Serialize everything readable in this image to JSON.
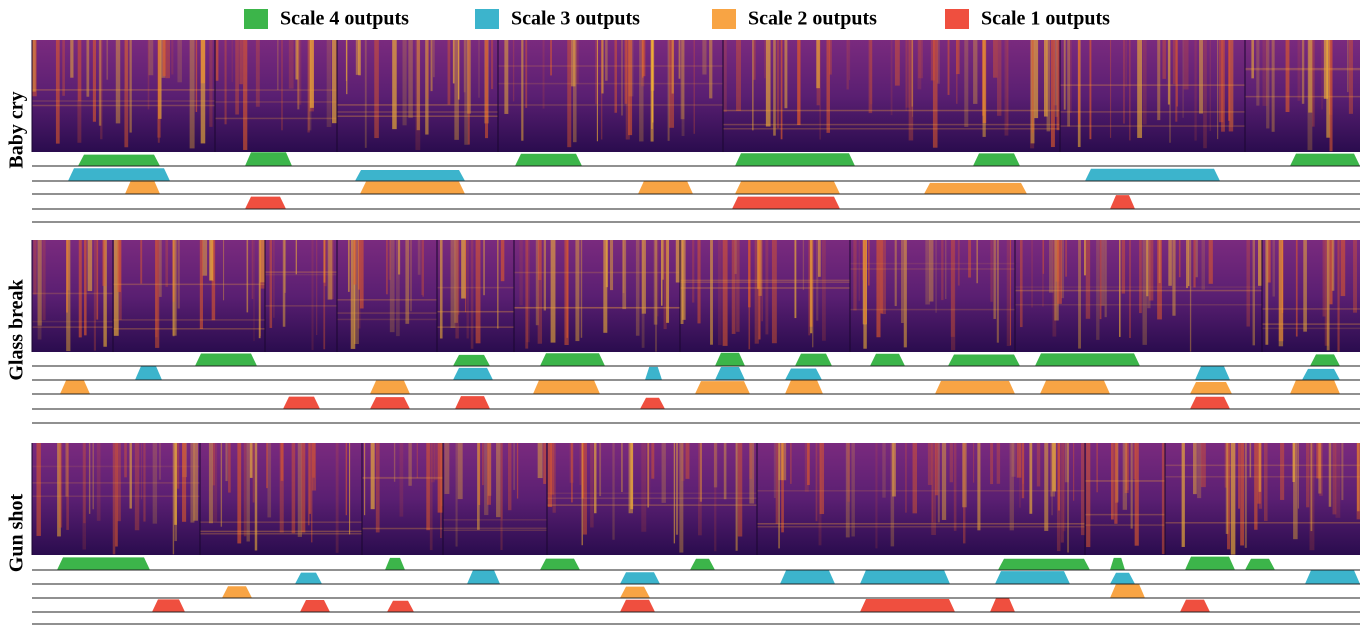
{
  "legend": [
    {
      "label": "Scale 4 outputs",
      "color": "#3cb54a"
    },
    {
      "label": "Scale 3 outputs",
      "color": "#3cb4cc"
    },
    {
      "label": "Scale 2 outputs",
      "color": "#f8a444"
    },
    {
      "label": "Scale 1 outputs",
      "color": "#ef4f3f"
    }
  ],
  "rows": [
    {
      "label": "Baby cry"
    },
    {
      "label": "Glass break"
    },
    {
      "label": "Gun shot"
    }
  ]
}
